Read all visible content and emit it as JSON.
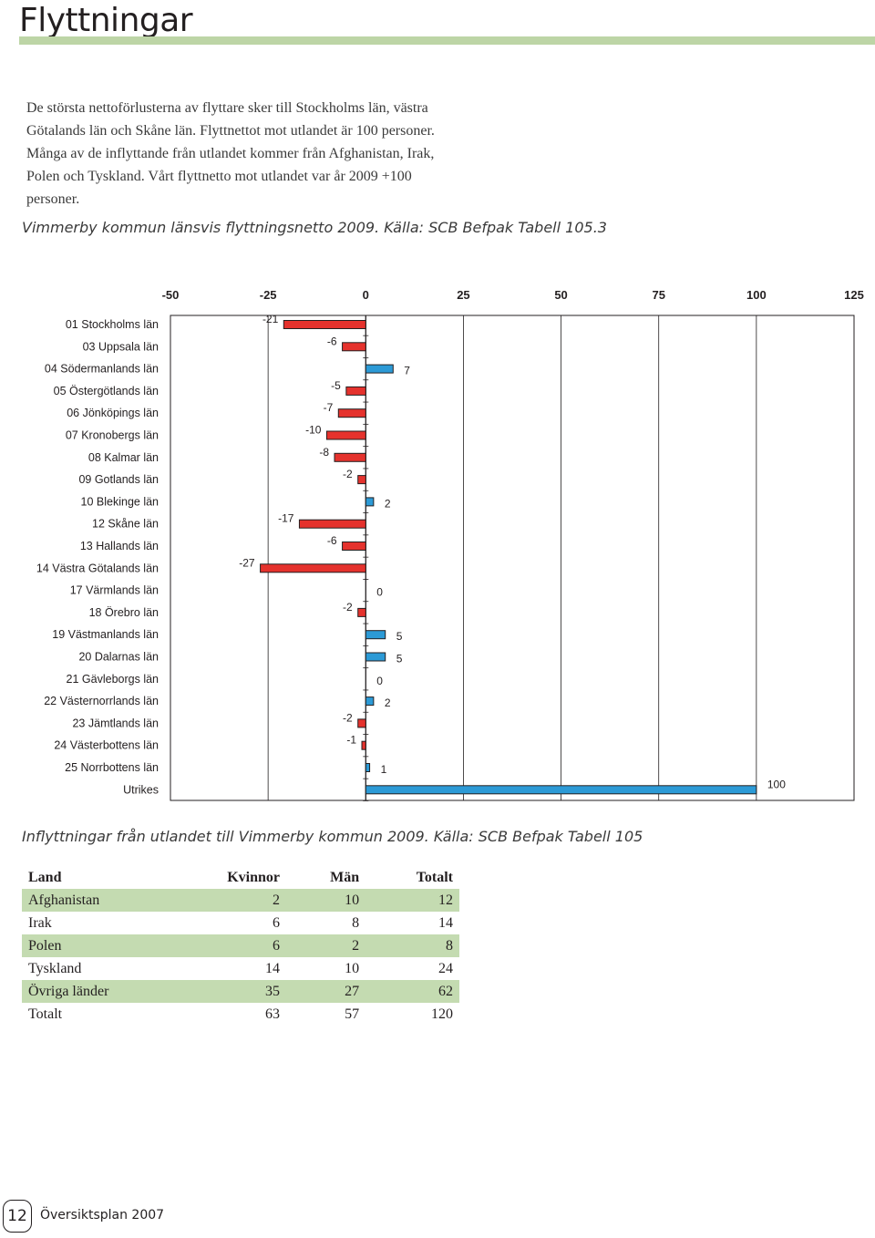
{
  "page": {
    "title": "Flyttningar",
    "intro": "De största nettoförlusterna av flyttare sker till Stockholms län, västra Götalands län och Skåne län. Flyttnettot mot utlandet är 100 personer. Många av de inflyttande från utlandet kommer från Afghanistan, Irak, Polen och Tyskland. Vårt flyttnetto mot utlandet var år 2009 +100 personer.",
    "chart_caption": "Vimmerby kommun länsvis flyttningsnetto 2009. Källa: SCB Befpak Tabell 105.3",
    "table_caption": "Inflyttningar från utlandet till Vimmerby kommun 2009. Källa: SCB Befpak Tabell 105"
  },
  "colors": {
    "negative": "#e5322d",
    "positive": "#2c9ad6",
    "accent": "#bdd5a6",
    "row_shade": "#c4dbb1"
  },
  "chart_data": {
    "type": "bar",
    "orientation": "horizontal",
    "title": "",
    "xlabel": "",
    "ylabel": "",
    "xlim": [
      -50,
      125
    ],
    "x_ticks": [
      "-50",
      "-25",
      "0",
      "25",
      "50",
      "75",
      "100",
      "125"
    ],
    "x_axis_position": "top",
    "grid": true,
    "categories": [
      "01 Stockholms län",
      "03 Uppsala län",
      "04 Södermanlands län",
      "05 Östergötlands län",
      "06 Jönköpings län",
      "07 Kronobergs län",
      "08 Kalmar län",
      "09 Gotlands län",
      "10 Blekinge län",
      "12 Skåne län",
      "13 Hallands län",
      "14 Västra Götalands län",
      "17 Värmlands län",
      "18 Örebro län",
      "19 Västmanlands län",
      "20 Dalarnas län",
      "21 Gävleborgs län",
      "22 Västernorrlands län",
      "23 Jämtlands län",
      "24 Västerbottens län",
      "25 Norrbottens län",
      "Utrikes"
    ],
    "values": [
      -21,
      -6,
      7,
      -5,
      -7,
      -10,
      -8,
      -2,
      2,
      -17,
      -6,
      -27,
      0,
      -2,
      5,
      5,
      0,
      2,
      -2,
      -1,
      1,
      100
    ],
    "value_labels": [
      "-21",
      "-6",
      "7",
      "-5",
      "-7",
      "-10",
      "-8",
      "-2",
      "2",
      "-17",
      "-6",
      "-27",
      "0",
      "-2",
      "5",
      "5",
      "0",
      "2",
      "-2",
      "-1",
      "1",
      "100"
    ]
  },
  "table": {
    "headers": [
      "Land",
      "Kvinnor",
      "Män",
      "Totalt"
    ],
    "rows": [
      [
        "Afghanistan",
        "2",
        "10",
        "12"
      ],
      [
        "Irak",
        "6",
        "8",
        "14"
      ],
      [
        "Polen",
        "6",
        "2",
        "8"
      ],
      [
        "Tyskland",
        "14",
        "10",
        "24"
      ],
      [
        "Övriga länder",
        "35",
        "27",
        "62"
      ],
      [
        "Totalt",
        "63",
        "57",
        "120"
      ]
    ]
  },
  "footer": {
    "page_number": "12",
    "doc_title": "Översiktsplan 2007"
  }
}
